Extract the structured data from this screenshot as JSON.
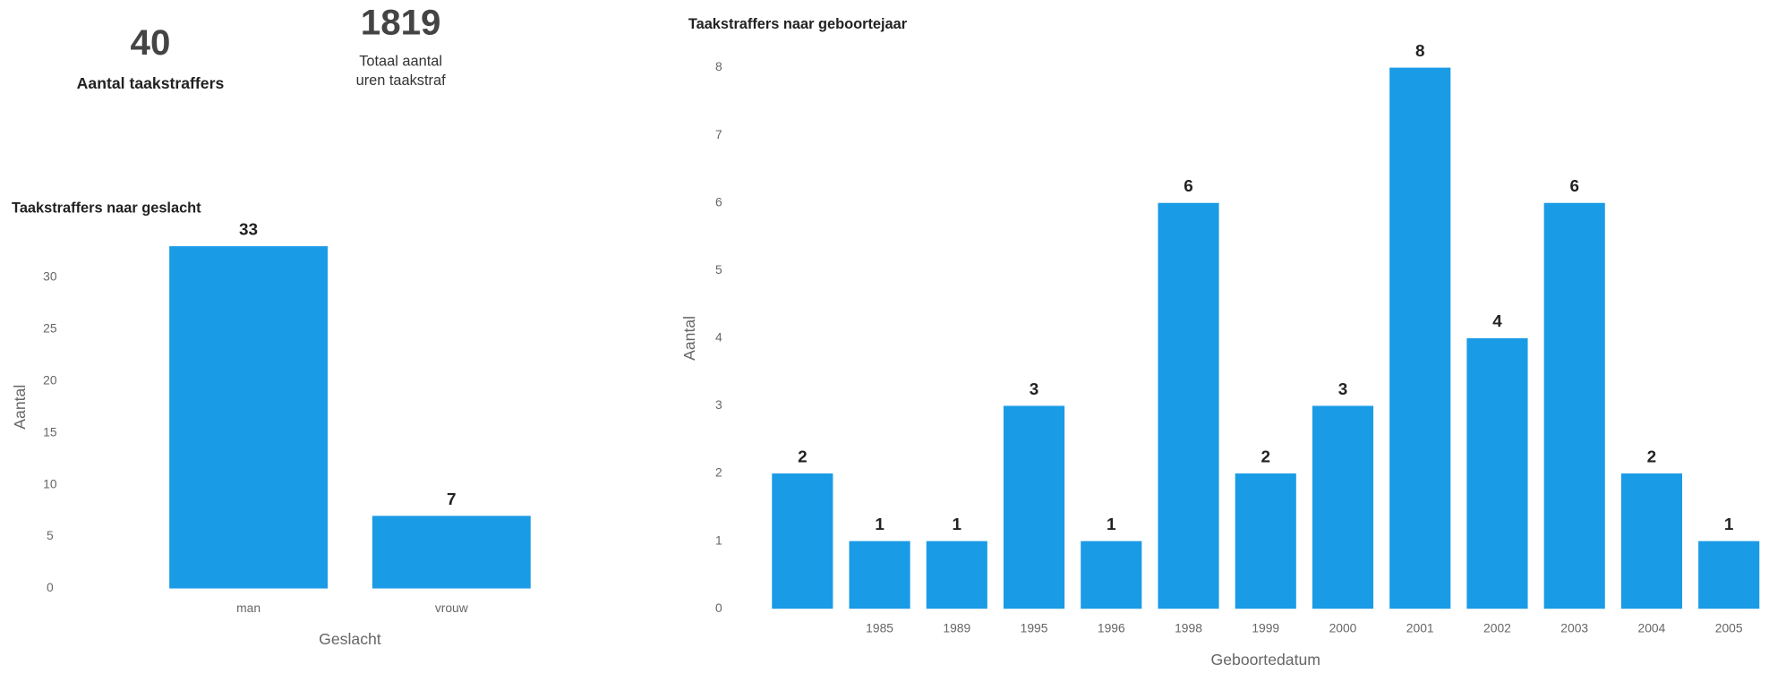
{
  "kpis": [
    {
      "value": 40,
      "label": [
        "Aantal taakstraffers"
      ]
    },
    {
      "value": 1819,
      "label": [
        "Totaal aantal",
        "uren taakstraf"
      ]
    }
  ],
  "chart_data": [
    {
      "type": "bar",
      "title": "Taakstraffers naar geslacht",
      "x_label": "Geslacht",
      "y_label": "Aantal",
      "categories": [
        "man",
        "vrouw"
      ],
      "values": [
        33,
        7
      ],
      "color": "#1a9be6",
      "ylim": [
        0,
        35
      ],
      "yticks": [
        0,
        5,
        10,
        15,
        20,
        25,
        30
      ],
      "grid": false
    },
    {
      "type": "bar",
      "title": "Taakstraffers naar geboortejaar",
      "x_label": "Geboortedatum",
      "y_label": "Aantal",
      "categories": [
        null,
        "1985",
        "1989",
        "1995",
        "1996",
        "1998",
        "1999",
        "2000",
        "2001",
        "2002",
        "2003",
        "2004",
        "2005"
      ],
      "values": [
        2,
        1,
        1,
        3,
        1,
        6,
        2,
        3,
        8,
        4,
        6,
        2,
        1
      ],
      "color": "#1a9be6",
      "ylim": [
        0,
        8
      ],
      "yticks": [
        0,
        1,
        2,
        3,
        4,
        5,
        6,
        7,
        8
      ],
      "grid": false
    }
  ]
}
